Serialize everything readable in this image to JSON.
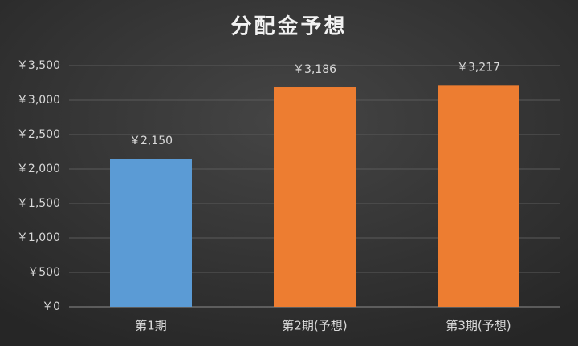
{
  "chart_data": {
    "type": "bar",
    "title": "分配金予想",
    "categories": [
      "第1期",
      "第2期(予想)",
      "第3期(予想)"
    ],
    "values": [
      2150,
      3186,
      3217
    ],
    "value_labels": [
      "￥2,150",
      "￥3,186",
      "￥3,217"
    ],
    "colors": [
      "#5b9bd5",
      "#ed7d31",
      "#ed7d31"
    ],
    "ylim": [
      0,
      3500
    ],
    "yticks": [
      {
        "value": 0,
        "label": "￥0"
      },
      {
        "value": 500,
        "label": "￥500"
      },
      {
        "value": 1000,
        "label": "￥1,000"
      },
      {
        "value": 1500,
        "label": "￥1,500"
      },
      {
        "value": 2000,
        "label": "￥2,000"
      },
      {
        "value": 2500,
        "label": "￥2,500"
      },
      {
        "value": 3000,
        "label": "￥3,000"
      },
      {
        "value": 3500,
        "label": "￥3,500"
      }
    ],
    "grid": true
  }
}
